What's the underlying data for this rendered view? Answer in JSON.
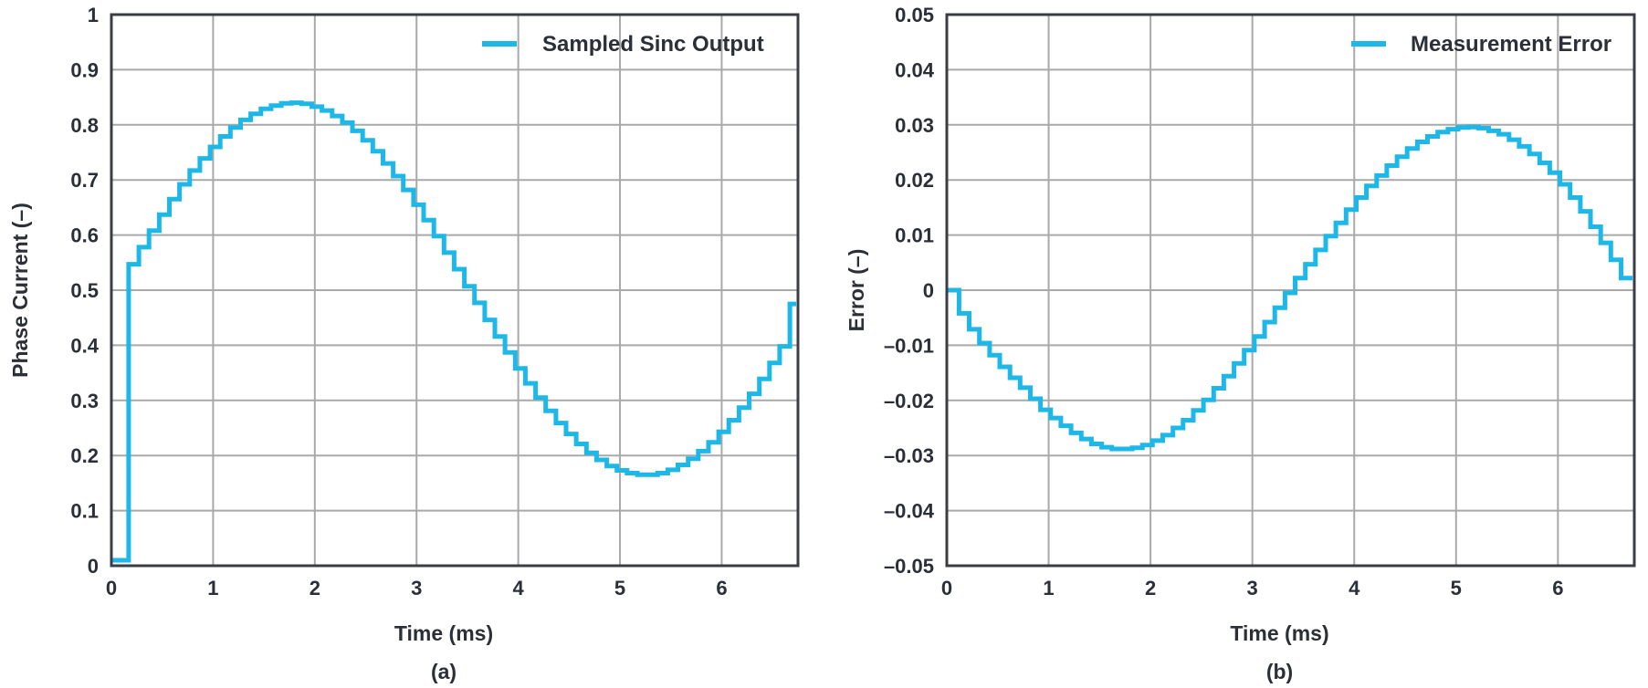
{
  "chart_data": [
    {
      "type": "line",
      "caption": "(a)",
      "xlabel": "Time (ms)",
      "ylabel": "Phase Current (–)",
      "xlim": [
        0,
        6.75
      ],
      "ylim": [
        0,
        1
      ],
      "x_ticks": [
        {
          "value": 0,
          "label": "0"
        },
        {
          "value": 1,
          "label": "1"
        },
        {
          "value": 2,
          "label": "2"
        },
        {
          "value": 3,
          "label": "3"
        },
        {
          "value": 4,
          "label": "4"
        },
        {
          "value": 5,
          "label": "5"
        },
        {
          "value": 6,
          "label": "6"
        }
      ],
      "y_ticks": [
        {
          "value": 0,
          "label": "0"
        },
        {
          "value": 0.1,
          "label": "0.1"
        },
        {
          "value": 0.2,
          "label": "0.2"
        },
        {
          "value": 0.3,
          "label": "0.3"
        },
        {
          "value": 0.4,
          "label": "0.4"
        },
        {
          "value": 0.5,
          "label": "0.5"
        },
        {
          "value": 0.6,
          "label": "0.6"
        },
        {
          "value": 0.7,
          "label": "0.7"
        },
        {
          "value": 0.8,
          "label": "0.8"
        },
        {
          "value": 0.9,
          "label": "0.9"
        },
        {
          "value": 1,
          "label": "1"
        }
      ],
      "grid": true,
      "legend": "top-right",
      "series": [
        {
          "name": "Sampled Sinc Output",
          "color": "#1eb8e8",
          "step": "post",
          "x": [
            0,
            0.17,
            0.27,
            0.37,
            0.47,
            0.57,
            0.67,
            0.77,
            0.87,
            0.97,
            1.07,
            1.17,
            1.27,
            1.37,
            1.47,
            1.57,
            1.67,
            1.77,
            1.87,
            1.97,
            2.07,
            2.17,
            2.27,
            2.37,
            2.47,
            2.57,
            2.67,
            2.77,
            2.87,
            2.97,
            3.07,
            3.17,
            3.27,
            3.37,
            3.47,
            3.57,
            3.67,
            3.77,
            3.87,
            3.97,
            4.07,
            4.17,
            4.27,
            4.37,
            4.47,
            4.57,
            4.67,
            4.77,
            4.87,
            4.97,
            5.07,
            5.17,
            5.27,
            5.37,
            5.47,
            5.57,
            5.67,
            5.77,
            5.87,
            5.97,
            6.07,
            6.17,
            6.27,
            6.37,
            6.47,
            6.57,
            6.67
          ],
          "y": [
            0.01,
            0.547,
            0.578,
            0.608,
            0.637,
            0.665,
            0.692,
            0.717,
            0.739,
            0.76,
            0.779,
            0.795,
            0.809,
            0.82,
            0.829,
            0.835,
            0.839,
            0.84,
            0.838,
            0.833,
            0.826,
            0.816,
            0.804,
            0.789,
            0.772,
            0.752,
            0.73,
            0.707,
            0.682,
            0.655,
            0.627,
            0.598,
            0.568,
            0.538,
            0.507,
            0.477,
            0.446,
            0.416,
            0.387,
            0.358,
            0.331,
            0.305,
            0.281,
            0.259,
            0.239,
            0.221,
            0.205,
            0.192,
            0.181,
            0.173,
            0.168,
            0.165,
            0.165,
            0.168,
            0.174,
            0.183,
            0.194,
            0.208,
            0.224,
            0.243,
            0.264,
            0.287,
            0.312,
            0.339,
            0.368,
            0.398,
            0.475
          ]
        }
      ]
    },
    {
      "type": "line",
      "caption": "(b)",
      "xlabel": "Time (ms)",
      "ylabel": "Error (–)",
      "xlim": [
        0,
        6.75
      ],
      "ylim": [
        -0.05,
        0.05
      ],
      "x_ticks": [
        {
          "value": 0,
          "label": "0"
        },
        {
          "value": 1,
          "label": "1"
        },
        {
          "value": 2,
          "label": "2"
        },
        {
          "value": 3,
          "label": "3"
        },
        {
          "value": 4,
          "label": "4"
        },
        {
          "value": 5,
          "label": "5"
        },
        {
          "value": 6,
          "label": "6"
        }
      ],
      "y_ticks": [
        {
          "value": -0.05,
          "label": "–0.05"
        },
        {
          "value": -0.04,
          "label": "–0.04"
        },
        {
          "value": -0.03,
          "label": "–0.03"
        },
        {
          "value": -0.02,
          "label": "–0.02"
        },
        {
          "value": -0.01,
          "label": "–0.01"
        },
        {
          "value": 0,
          "label": "0"
        },
        {
          "value": 0.01,
          "label": "0.01"
        },
        {
          "value": 0.02,
          "label": "0.02"
        },
        {
          "value": 0.03,
          "label": "0.03"
        },
        {
          "value": 0.04,
          "label": "0.04"
        },
        {
          "value": 0.05,
          "label": "0.05"
        }
      ],
      "grid": true,
      "legend": "top-right",
      "series": [
        {
          "name": "Measurement Error",
          "color": "#1eb8e8",
          "step": "post",
          "x": [
            0,
            0.12,
            0.22,
            0.32,
            0.42,
            0.52,
            0.62,
            0.72,
            0.82,
            0.92,
            1.02,
            1.12,
            1.22,
            1.32,
            1.42,
            1.52,
            1.62,
            1.72,
            1.82,
            1.92,
            2.02,
            2.12,
            2.22,
            2.32,
            2.42,
            2.52,
            2.62,
            2.72,
            2.82,
            2.92,
            3.02,
            3.12,
            3.22,
            3.32,
            3.42,
            3.52,
            3.62,
            3.72,
            3.82,
            3.92,
            4.02,
            4.12,
            4.22,
            4.32,
            4.42,
            4.52,
            4.62,
            4.72,
            4.82,
            4.92,
            5.02,
            5.12,
            5.22,
            5.32,
            5.42,
            5.52,
            5.62,
            5.72,
            5.82,
            5.92,
            6.02,
            6.12,
            6.22,
            6.32,
            6.42,
            6.52,
            6.62
          ],
          "y": [
            0.0,
            -0.0042,
            -0.0071,
            -0.0096,
            -0.0118,
            -0.0139,
            -0.0159,
            -0.0177,
            -0.0197,
            -0.0217,
            -0.0232,
            -0.0246,
            -0.0259,
            -0.027,
            -0.0279,
            -0.0285,
            -0.0288,
            -0.0288,
            -0.0286,
            -0.0281,
            -0.0273,
            -0.0263,
            -0.025,
            -0.0236,
            -0.0218,
            -0.0199,
            -0.0178,
            -0.0156,
            -0.0133,
            -0.0109,
            -0.0084,
            -0.0058,
            -0.0032,
            -0.0005,
            0.0022,
            0.0047,
            0.0073,
            0.0098,
            0.0122,
            0.0146,
            0.0168,
            0.0189,
            0.0208,
            0.0226,
            0.0242,
            0.0257,
            0.0269,
            0.0279,
            0.0287,
            0.0292,
            0.0295,
            0.0296,
            0.0294,
            0.0289,
            0.0283,
            0.0273,
            0.0261,
            0.0247,
            0.0231,
            0.0213,
            0.0192,
            0.0168,
            0.0143,
            0.0115,
            0.0086,
            0.0055,
            0.0022
          ]
        }
      ]
    }
  ]
}
